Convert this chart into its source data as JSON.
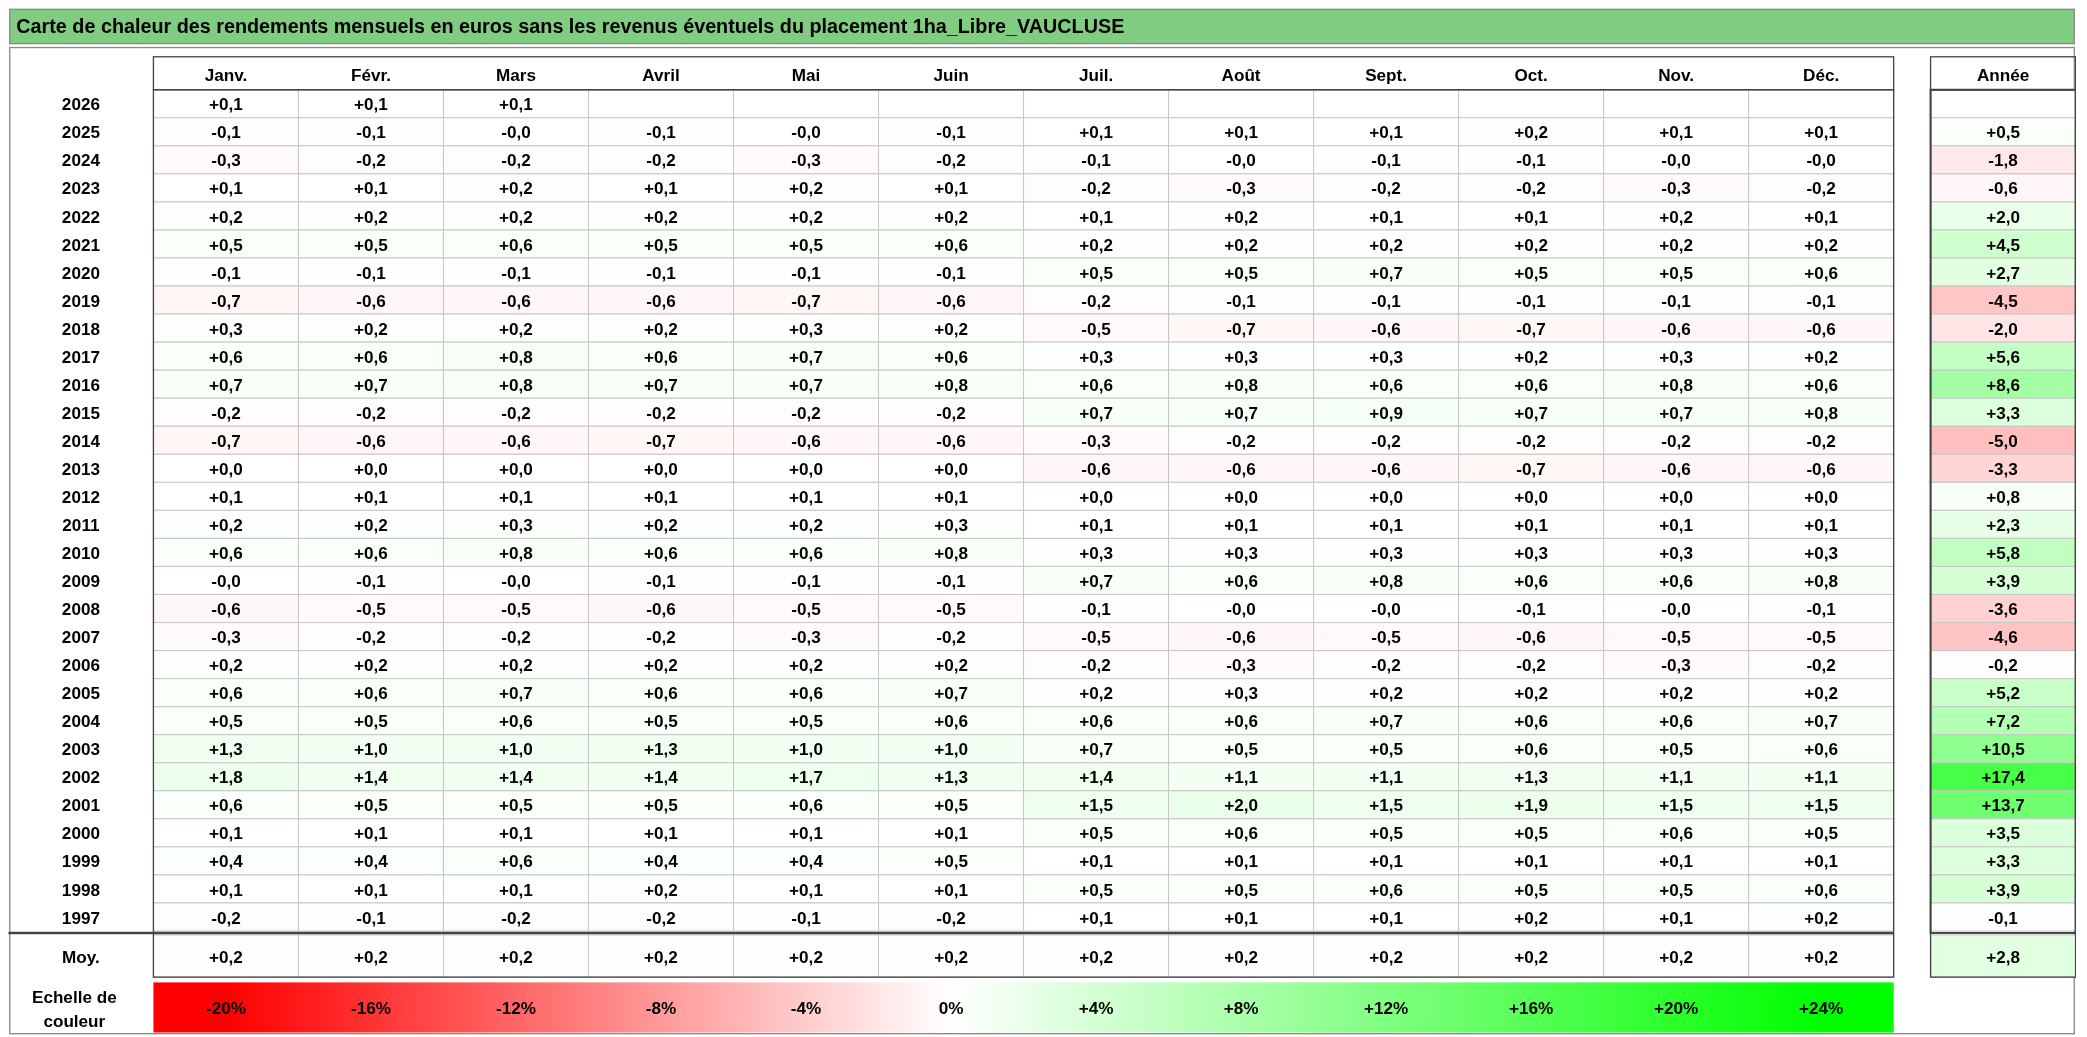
{
  "chart_data": {
    "type": "heatmap",
    "title": "Carte de chaleur des rendements mensuels en euros sans les revenus éventuels du placement 1ha_Libre_VAUCLUSE",
    "categories": [
      "Janv.",
      "Févr.",
      "Mars",
      "Avril",
      "Mai",
      "Juin",
      "Juil.",
      "Août",
      "Sept.",
      "Oct.",
      "Nov.",
      "Déc.",
      "Année"
    ],
    "y_categories": [
      "2026",
      "2025",
      "2024",
      "2023",
      "2022",
      "2021",
      "2020",
      "2019",
      "2018",
      "2017",
      "2016",
      "2015",
      "2014",
      "2013",
      "2012",
      "2011",
      "2010",
      "2009",
      "2008",
      "2007",
      "2006",
      "2005",
      "2004",
      "2003",
      "2002",
      "2001",
      "2000",
      "1999",
      "1998",
      "1997",
      "Moy."
    ],
    "cells": [
      [
        0.1,
        0.1,
        0.1,
        null,
        null,
        null,
        null,
        null,
        null,
        null,
        null,
        null,
        null
      ],
      [
        -0.1,
        -0.1,
        -0.0,
        -0.1,
        -0.0,
        -0.1,
        0.1,
        0.1,
        0.1,
        0.2,
        0.1,
        0.1,
        0.5
      ],
      [
        -0.3,
        -0.2,
        -0.2,
        -0.2,
        -0.3,
        -0.2,
        -0.1,
        -0.0,
        -0.1,
        -0.1,
        -0.0,
        -0.0,
        -1.8
      ],
      [
        0.1,
        0.1,
        0.2,
        0.1,
        0.2,
        0.1,
        -0.2,
        -0.3,
        -0.2,
        -0.2,
        -0.3,
        -0.2,
        -0.6
      ],
      [
        0.2,
        0.2,
        0.2,
        0.2,
        0.2,
        0.2,
        0.1,
        0.2,
        0.1,
        0.1,
        0.2,
        0.1,
        2.0
      ],
      [
        0.5,
        0.5,
        0.6,
        0.5,
        0.5,
        0.6,
        0.2,
        0.2,
        0.2,
        0.2,
        0.2,
        0.2,
        4.5
      ],
      [
        -0.1,
        -0.1,
        -0.1,
        -0.1,
        -0.1,
        -0.1,
        0.5,
        0.5,
        0.7,
        0.5,
        0.5,
        0.6,
        2.7
      ],
      [
        -0.7,
        -0.6,
        -0.6,
        -0.6,
        -0.7,
        -0.6,
        -0.2,
        -0.1,
        -0.1,
        -0.1,
        -0.1,
        -0.1,
        -4.5
      ],
      [
        0.3,
        0.2,
        0.2,
        0.2,
        0.3,
        0.2,
        -0.5,
        -0.7,
        -0.6,
        -0.7,
        -0.6,
        -0.6,
        -2.0
      ],
      [
        0.6,
        0.6,
        0.8,
        0.6,
        0.7,
        0.6,
        0.3,
        0.3,
        0.3,
        0.2,
        0.3,
        0.2,
        5.6
      ],
      [
        0.7,
        0.7,
        0.8,
        0.7,
        0.7,
        0.8,
        0.6,
        0.8,
        0.6,
        0.6,
        0.8,
        0.6,
        8.6
      ],
      [
        -0.2,
        -0.2,
        -0.2,
        -0.2,
        -0.2,
        -0.2,
        0.7,
        0.7,
        0.9,
        0.7,
        0.7,
        0.8,
        3.3
      ],
      [
        -0.7,
        -0.6,
        -0.6,
        -0.7,
        -0.6,
        -0.6,
        -0.3,
        -0.2,
        -0.2,
        -0.2,
        -0.2,
        -0.2,
        -5.0
      ],
      [
        0.0,
        0.0,
        0.0,
        0.0,
        0.0,
        0.0,
        -0.6,
        -0.6,
        -0.6,
        -0.7,
        -0.6,
        -0.6,
        -3.3
      ],
      [
        0.1,
        0.1,
        0.1,
        0.1,
        0.1,
        0.1,
        0.0,
        0.0,
        0.0,
        0.0,
        0.0,
        0.0,
        0.8
      ],
      [
        0.2,
        0.2,
        0.3,
        0.2,
        0.2,
        0.3,
        0.1,
        0.1,
        0.1,
        0.1,
        0.1,
        0.1,
        2.3
      ],
      [
        0.6,
        0.6,
        0.8,
        0.6,
        0.6,
        0.8,
        0.3,
        0.3,
        0.3,
        0.3,
        0.3,
        0.3,
        5.8
      ],
      [
        -0.0,
        -0.1,
        -0.0,
        -0.1,
        -0.1,
        -0.1,
        0.7,
        0.6,
        0.8,
        0.6,
        0.6,
        0.8,
        3.9
      ],
      [
        -0.6,
        -0.5,
        -0.5,
        -0.6,
        -0.5,
        -0.5,
        -0.1,
        -0.0,
        -0.0,
        -0.1,
        -0.0,
        -0.1,
        -3.6
      ],
      [
        -0.3,
        -0.2,
        -0.2,
        -0.2,
        -0.3,
        -0.2,
        -0.5,
        -0.6,
        -0.5,
        -0.6,
        -0.5,
        -0.5,
        -4.6
      ],
      [
        0.2,
        0.2,
        0.2,
        0.2,
        0.2,
        0.2,
        -0.2,
        -0.3,
        -0.2,
        -0.2,
        -0.3,
        -0.2,
        -0.2
      ],
      [
        0.6,
        0.6,
        0.7,
        0.6,
        0.6,
        0.7,
        0.2,
        0.3,
        0.2,
        0.2,
        0.2,
        0.2,
        5.2
      ],
      [
        0.5,
        0.5,
        0.6,
        0.5,
        0.5,
        0.6,
        0.6,
        0.6,
        0.7,
        0.6,
        0.6,
        0.7,
        7.2
      ],
      [
        1.3,
        1.0,
        1.0,
        1.3,
        1.0,
        1.0,
        0.7,
        0.5,
        0.5,
        0.6,
        0.5,
        0.6,
        10.5
      ],
      [
        1.8,
        1.4,
        1.4,
        1.4,
        1.7,
        1.3,
        1.4,
        1.1,
        1.1,
        1.3,
        1.1,
        1.1,
        17.4
      ],
      [
        0.6,
        0.5,
        0.5,
        0.5,
        0.6,
        0.5,
        1.5,
        2.0,
        1.5,
        1.9,
        1.5,
        1.5,
        13.7
      ],
      [
        0.1,
        0.1,
        0.1,
        0.1,
        0.1,
        0.1,
        0.5,
        0.6,
        0.5,
        0.5,
        0.6,
        0.5,
        3.5
      ],
      [
        0.4,
        0.4,
        0.6,
        0.4,
        0.4,
        0.5,
        0.1,
        0.1,
        0.1,
        0.1,
        0.1,
        0.1,
        3.3
      ],
      [
        0.1,
        0.1,
        0.1,
        0.2,
        0.1,
        0.1,
        0.5,
        0.5,
        0.6,
        0.5,
        0.5,
        0.6,
        3.9
      ],
      [
        -0.2,
        -0.1,
        -0.2,
        -0.2,
        -0.1,
        -0.2,
        0.1,
        0.1,
        0.1,
        0.2,
        0.1,
        0.2,
        -0.1
      ],
      [
        0.2,
        0.2,
        0.2,
        0.2,
        0.2,
        0.2,
        0.2,
        0.2,
        0.2,
        0.2,
        0.2,
        0.2,
        2.8
      ]
    ],
    "cell_labels": [
      [
        "+0,1",
        "+0,1",
        "+0,1",
        null,
        null,
        null,
        null,
        null,
        null,
        null,
        null,
        null,
        null
      ],
      [
        "-0,1",
        "-0,1",
        "-0,0",
        "-0,1",
        "-0,0",
        "-0,1",
        "+0,1",
        "+0,1",
        "+0,1",
        "+0,2",
        "+0,1",
        "+0,1",
        "+0,5"
      ],
      [
        "-0,3",
        "-0,2",
        "-0,2",
        "-0,2",
        "-0,3",
        "-0,2",
        "-0,1",
        "-0,0",
        "-0,1",
        "-0,1",
        "-0,0",
        "-0,0",
        "-1,8"
      ],
      [
        "+0,1",
        "+0,1",
        "+0,2",
        "+0,1",
        "+0,2",
        "+0,1",
        "-0,2",
        "-0,3",
        "-0,2",
        "-0,2",
        "-0,3",
        "-0,2",
        "-0,6"
      ],
      [
        "+0,2",
        "+0,2",
        "+0,2",
        "+0,2",
        "+0,2",
        "+0,2",
        "+0,1",
        "+0,2",
        "+0,1",
        "+0,1",
        "+0,2",
        "+0,1",
        "+2,0"
      ],
      [
        "+0,5",
        "+0,5",
        "+0,6",
        "+0,5",
        "+0,5",
        "+0,6",
        "+0,2",
        "+0,2",
        "+0,2",
        "+0,2",
        "+0,2",
        "+0,2",
        "+4,5"
      ],
      [
        "-0,1",
        "-0,1",
        "-0,1",
        "-0,1",
        "-0,1",
        "-0,1",
        "+0,5",
        "+0,5",
        "+0,7",
        "+0,5",
        "+0,5",
        "+0,6",
        "+2,7"
      ],
      [
        "-0,7",
        "-0,6",
        "-0,6",
        "-0,6",
        "-0,7",
        "-0,6",
        "-0,2",
        "-0,1",
        "-0,1",
        "-0,1",
        "-0,1",
        "-0,1",
        "-4,5"
      ],
      [
        "+0,3",
        "+0,2",
        "+0,2",
        "+0,2",
        "+0,3",
        "+0,2",
        "-0,5",
        "-0,7",
        "-0,6",
        "-0,7",
        "-0,6",
        "-0,6",
        "-2,0"
      ],
      [
        "+0,6",
        "+0,6",
        "+0,8",
        "+0,6",
        "+0,7",
        "+0,6",
        "+0,3",
        "+0,3",
        "+0,3",
        "+0,2",
        "+0,3",
        "+0,2",
        "+5,6"
      ],
      [
        "+0,7",
        "+0,7",
        "+0,8",
        "+0,7",
        "+0,7",
        "+0,8",
        "+0,6",
        "+0,8",
        "+0,6",
        "+0,6",
        "+0,8",
        "+0,6",
        "+8,6"
      ],
      [
        "-0,2",
        "-0,2",
        "-0,2",
        "-0,2",
        "-0,2",
        "-0,2",
        "+0,7",
        "+0,7",
        "+0,9",
        "+0,7",
        "+0,7",
        "+0,8",
        "+3,3"
      ],
      [
        "-0,7",
        "-0,6",
        "-0,6",
        "-0,7",
        "-0,6",
        "-0,6",
        "-0,3",
        "-0,2",
        "-0,2",
        "-0,2",
        "-0,2",
        "-0,2",
        "-5,0"
      ],
      [
        "+0,0",
        "+0,0",
        "+0,0",
        "+0,0",
        "+0,0",
        "+0,0",
        "-0,6",
        "-0,6",
        "-0,6",
        "-0,7",
        "-0,6",
        "-0,6",
        "-3,3"
      ],
      [
        "+0,1",
        "+0,1",
        "+0,1",
        "+0,1",
        "+0,1",
        "+0,1",
        "+0,0",
        "+0,0",
        "+0,0",
        "+0,0",
        "+0,0",
        "+0,0",
        "+0,8"
      ],
      [
        "+0,2",
        "+0,2",
        "+0,3",
        "+0,2",
        "+0,2",
        "+0,3",
        "+0,1",
        "+0,1",
        "+0,1",
        "+0,1",
        "+0,1",
        "+0,1",
        "+2,3"
      ],
      [
        "+0,6",
        "+0,6",
        "+0,8",
        "+0,6",
        "+0,6",
        "+0,8",
        "+0,3",
        "+0,3",
        "+0,3",
        "+0,3",
        "+0,3",
        "+0,3",
        "+5,8"
      ],
      [
        "-0,0",
        "-0,1",
        "-0,0",
        "-0,1",
        "-0,1",
        "-0,1",
        "+0,7",
        "+0,6",
        "+0,8",
        "+0,6",
        "+0,6",
        "+0,8",
        "+3,9"
      ],
      [
        "-0,6",
        "-0,5",
        "-0,5",
        "-0,6",
        "-0,5",
        "-0,5",
        "-0,1",
        "-0,0",
        "-0,0",
        "-0,1",
        "-0,0",
        "-0,1",
        "-3,6"
      ],
      [
        "-0,3",
        "-0,2",
        "-0,2",
        "-0,2",
        "-0,3",
        "-0,2",
        "-0,5",
        "-0,6",
        "-0,5",
        "-0,6",
        "-0,5",
        "-0,5",
        "-4,6"
      ],
      [
        "+0,2",
        "+0,2",
        "+0,2",
        "+0,2",
        "+0,2",
        "+0,2",
        "-0,2",
        "-0,3",
        "-0,2",
        "-0,2",
        "-0,3",
        "-0,2",
        "-0,2"
      ],
      [
        "+0,6",
        "+0,6",
        "+0,7",
        "+0,6",
        "+0,6",
        "+0,7",
        "+0,2",
        "+0,3",
        "+0,2",
        "+0,2",
        "+0,2",
        "+0,2",
        "+5,2"
      ],
      [
        "+0,5",
        "+0,5",
        "+0,6",
        "+0,5",
        "+0,5",
        "+0,6",
        "+0,6",
        "+0,6",
        "+0,7",
        "+0,6",
        "+0,6",
        "+0,7",
        "+7,2"
      ],
      [
        "+1,3",
        "+1,0",
        "+1,0",
        "+1,3",
        "+1,0",
        "+1,0",
        "+0,7",
        "+0,5",
        "+0,5",
        "+0,6",
        "+0,5",
        "+0,6",
        "+10,5"
      ],
      [
        "+1,8",
        "+1,4",
        "+1,4",
        "+1,4",
        "+1,7",
        "+1,3",
        "+1,4",
        "+1,1",
        "+1,1",
        "+1,3",
        "+1,1",
        "+1,1",
        "+17,4"
      ],
      [
        "+0,6",
        "+0,5",
        "+0,5",
        "+0,5",
        "+0,6",
        "+0,5",
        "+1,5",
        "+2,0",
        "+1,5",
        "+1,9",
        "+1,5",
        "+1,5",
        "+13,7"
      ],
      [
        "+0,1",
        "+0,1",
        "+0,1",
        "+0,1",
        "+0,1",
        "+0,1",
        "+0,5",
        "+0,6",
        "+0,5",
        "+0,5",
        "+0,6",
        "+0,5",
        "+3,5"
      ],
      [
        "+0,4",
        "+0,4",
        "+0,6",
        "+0,4",
        "+0,4",
        "+0,5",
        "+0,1",
        "+0,1",
        "+0,1",
        "+0,1",
        "+0,1",
        "+0,1",
        "+3,3"
      ],
      [
        "+0,1",
        "+0,1",
        "+0,1",
        "+0,2",
        "+0,1",
        "+0,1",
        "+0,5",
        "+0,5",
        "+0,6",
        "+0,5",
        "+0,5",
        "+0,6",
        "+3,9"
      ],
      [
        "-0,2",
        "-0,1",
        "-0,2",
        "-0,2",
        "-0,1",
        "-0,2",
        "+0,1",
        "+0,1",
        "+0,1",
        "+0,2",
        "+0,1",
        "+0,2",
        "-0,1"
      ],
      [
        "+0,2",
        "+0,2",
        "+0,2",
        "+0,2",
        "+0,2",
        "+0,2",
        "+0,2",
        "+0,2",
        "+0,2",
        "+0,2",
        "+0,2",
        "+0,2",
        "+2,8"
      ]
    ],
    "clabel": "Echelle de couleur",
    "clim": [
      -22,
      26
    ],
    "cticks": [
      {
        "value": -20,
        "label": "-20%"
      },
      {
        "value": -16,
        "label": "-16%"
      },
      {
        "value": -12,
        "label": "-12%"
      },
      {
        "value": -8,
        "label": "-8%"
      },
      {
        "value": -4,
        "label": "-4%"
      },
      {
        "value": 0,
        "label": "0%"
      },
      {
        "value": 4,
        "label": "+4%"
      },
      {
        "value": 8,
        "label": "+8%"
      },
      {
        "value": 12,
        "label": "+12%"
      },
      {
        "value": 16,
        "label": "+16%"
      },
      {
        "value": 20,
        "label": "+20%"
      },
      {
        "value": 24,
        "label": "+24%"
      }
    ]
  }
}
